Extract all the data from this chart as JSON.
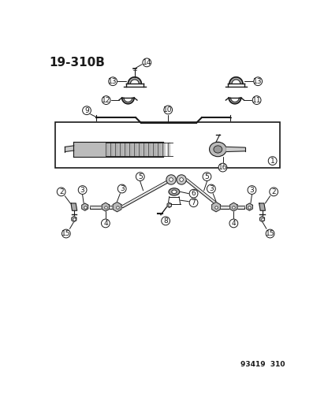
{
  "title": "19-310B",
  "footer": "93419  310",
  "bg_color": "#ffffff",
  "line_color": "#1a1a1a",
  "title_fontsize": 11,
  "label_fontsize": 6.5,
  "footer_fontsize": 6.5
}
